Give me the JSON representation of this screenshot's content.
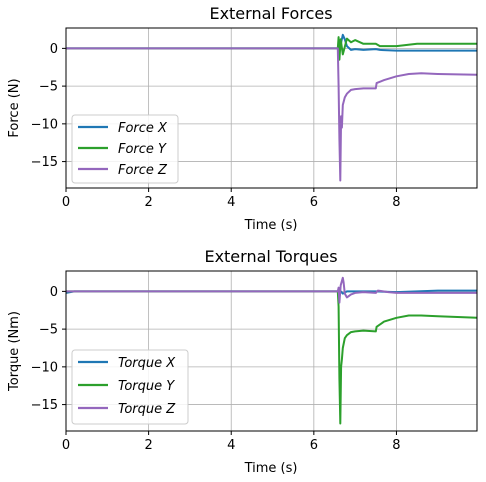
{
  "chart_data": [
    {
      "type": "line",
      "title": "External Forces",
      "xlabel": "Time (s)",
      "ylabel": "Force (N)",
      "xlim": [
        0,
        9.95
      ],
      "ylim": [
        -18.5,
        2.7
      ],
      "xticks": [
        0,
        2,
        4,
        6,
        8
      ],
      "yticks": [
        0,
        -5,
        -10,
        -15
      ],
      "grid": true,
      "legend_position": "lower-left",
      "series": [
        {
          "name": "Force X",
          "color": "#1f77b4",
          "x": [
            0,
            6.58,
            6.6,
            6.65,
            6.7,
            6.75,
            6.8,
            6.9,
            7.0,
            7.2,
            7.5,
            7.6,
            8.0,
            9.0,
            9.95
          ],
          "y": [
            0,
            0,
            -0.5,
            0.5,
            1.8,
            1.2,
            0.3,
            -0.2,
            -0.1,
            -0.2,
            -0.1,
            -0.2,
            -0.3,
            -0.3,
            -0.3
          ]
        },
        {
          "name": "Force Y",
          "color": "#2ca02c",
          "x": [
            0,
            6.58,
            6.6,
            6.62,
            6.65,
            6.7,
            6.75,
            6.8,
            6.9,
            7.0,
            7.2,
            7.5,
            7.6,
            8.0,
            8.5,
            9.0,
            9.95
          ],
          "y": [
            0,
            0,
            1.5,
            -1.5,
            1.2,
            -0.8,
            0.2,
            1.3,
            0.8,
            1.1,
            0.6,
            0.6,
            0.3,
            0.3,
            0.6,
            0.6,
            0.6
          ]
        },
        {
          "name": "Force Z",
          "color": "#9467bd",
          "x": [
            0,
            6.58,
            6.6,
            6.62,
            6.64,
            6.66,
            6.68,
            6.7,
            6.75,
            6.8,
            6.9,
            7.0,
            7.2,
            7.5,
            7.52,
            7.7,
            8.0,
            8.3,
            8.6,
            9.0,
            9.95
          ],
          "y": [
            0,
            0,
            -5,
            -12,
            -17.5,
            -9,
            -10.5,
            -7.5,
            -6.5,
            -6,
            -5.5,
            -5.4,
            -5.3,
            -5.3,
            -4.6,
            -4.2,
            -3.7,
            -3.4,
            -3.3,
            -3.4,
            -3.5
          ]
        }
      ]
    },
    {
      "type": "line",
      "title": "External Torques",
      "xlabel": "Time (s)",
      "ylabel": "Torque (Nm)",
      "xlim": [
        0,
        9.95
      ],
      "ylim": [
        -18.5,
        2.7
      ],
      "xticks": [
        0,
        2,
        4,
        6,
        8
      ],
      "yticks": [
        0,
        -5,
        -10,
        -15
      ],
      "grid": true,
      "legend_position": "lower-left",
      "series": [
        {
          "name": "Torque X",
          "color": "#1f77b4",
          "x": [
            0,
            0.2,
            6.58,
            6.62,
            6.7,
            6.8,
            7.5,
            8.0,
            9.0,
            9.95
          ],
          "y": [
            -0.2,
            0,
            0,
            0.2,
            -0.3,
            0,
            0,
            -0.1,
            0.1,
            0.1
          ]
        },
        {
          "name": "Torque Y",
          "color": "#2ca02c",
          "x": [
            0,
            6.58,
            6.6,
            6.62,
            6.64,
            6.66,
            6.68,
            6.7,
            6.75,
            6.8,
            6.9,
            7.0,
            7.2,
            7.5,
            7.52,
            7.7,
            8.0,
            8.3,
            8.6,
            9.0,
            9.95
          ],
          "y": [
            0,
            0,
            -2,
            -11.5,
            -17.5,
            -10,
            -9,
            -7.5,
            -6.2,
            -5.8,
            -5.4,
            -5.3,
            -5.2,
            -5.3,
            -4.7,
            -4,
            -3.5,
            -3.2,
            -3.2,
            -3.3,
            -3.5
          ]
        },
        {
          "name": "Torque Z",
          "color": "#9467bd",
          "x": [
            0,
            6.58,
            6.6,
            6.62,
            6.65,
            6.7,
            6.72,
            6.75,
            6.8,
            6.9,
            7.0,
            7.2,
            7.5,
            7.55,
            7.8,
            8.0,
            9.0,
            9.95
          ],
          "y": [
            0,
            0,
            0.5,
            -1.5,
            0.8,
            1.8,
            1.2,
            -0.3,
            -0.8,
            -0.4,
            -0.2,
            -0.1,
            -0.2,
            0.1,
            -0.1,
            -0.2,
            -0.2,
            -0.2
          ]
        }
      ]
    }
  ]
}
